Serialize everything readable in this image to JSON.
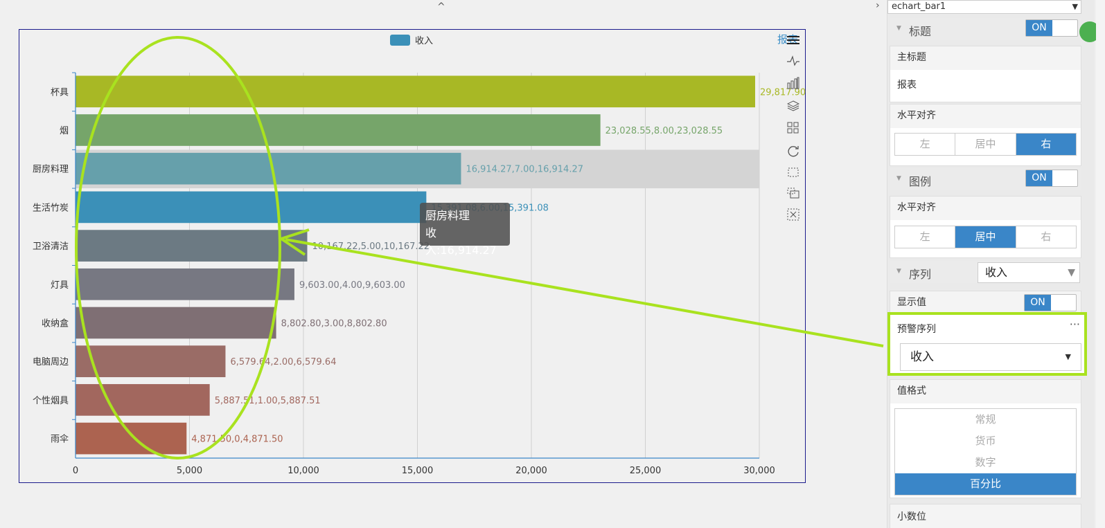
{
  "top_caret": "^",
  "chart_data": {
    "type": "bar",
    "orientation": "horizontal",
    "legend": "收入",
    "categories": [
      "杯具",
      "烟",
      "厨房料理",
      "生活竹炭",
      "卫浴清洁",
      "灯具",
      "收纳盒",
      "电脑周边",
      "个性烟具",
      "雨伞"
    ],
    "series": [
      {
        "name": "收入",
        "values": [
          29817.9,
          23028.55,
          16914.27,
          15391.08,
          10167.22,
          9603.0,
          8802.8,
          6579.64,
          5887.51,
          4871.5
        ],
        "labels": [
          "29,817.90",
          "23,028.55,8.00,23,028.55",
          "16,914.27,7.00,16,914.27",
          "15,391.08,6.00,15,391.08",
          "10,167.22,5.00,10,167.22",
          "9,603.00,4.00,9,603.00",
          "8,802.80,3.00,8,802.80",
          "6,579.64,2.00,6,579.64",
          "5,887.51,1.00,5,887.51",
          "4,871.50,0,4,871.50"
        ]
      }
    ],
    "bar_colors": [
      "#a8b825",
      "#76a56a",
      "#66a0ab",
      "#3b90b8",
      "#6c7a83",
      "#777882",
      "#7f6f74",
      "#9a6c66",
      "#a2675e",
      "#ac6350"
    ],
    "xlim": [
      0,
      30000
    ],
    "xticks": [
      "0",
      "5,000",
      "10,000",
      "15,000",
      "20,000",
      "25,000",
      "30,000"
    ],
    "highlight_category": "厨房料理",
    "grid": true
  },
  "chart": {
    "save_text": "报表",
    "tooltip_title": "厨房料理",
    "tooltip_value": "收入:16,914.27"
  },
  "toolbox_icons": [
    "menu-icon",
    "line-chart-icon",
    "bar-chart-icon",
    "stack-icon",
    "tiled-icon",
    "restore-icon",
    "data-zoom-icon",
    "data-zoom-reset-icon",
    "clear-icon"
  ],
  "panel": {
    "collapse_caret": "›",
    "component_select": "echart_bar1",
    "title_section": {
      "label": "标题",
      "toggle": "ON"
    },
    "main_title": {
      "label": "主标题",
      "value": "报表"
    },
    "title_align": {
      "label": "水平对齐",
      "options": [
        "左",
        "居中",
        "右"
      ],
      "selected": "右"
    },
    "legend_section": {
      "label": "图例",
      "toggle": "ON"
    },
    "legend_align": {
      "label": "水平对齐",
      "options": [
        "左",
        "居中",
        "右"
      ],
      "selected": "居中"
    },
    "series_section": {
      "label": "序列",
      "selected": "收入"
    },
    "show_value": {
      "label": "显示值",
      "toggle": "ON"
    },
    "warning_series": {
      "label": "预警序列",
      "more": "···",
      "selected": "收入"
    },
    "value_format": {
      "label": "值格式",
      "options": [
        "常规",
        "货币",
        "数字",
        "百分比"
      ],
      "selected": "百分比"
    },
    "decimals_label": "小数位"
  },
  "colors": {
    "accent": "#3a86c8",
    "annotation": "#a9e21f"
  }
}
